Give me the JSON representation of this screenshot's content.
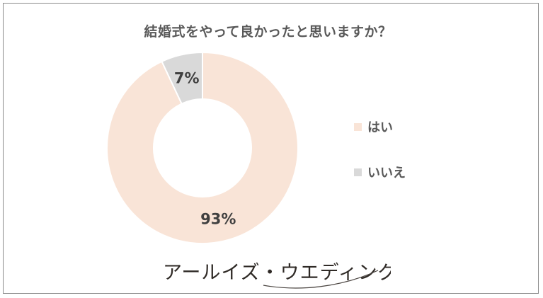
{
  "chart_data": {
    "type": "pie",
    "title": "結婚式をやって良かったと思いますか？",
    "categories": [
      "はい",
      "いいえ"
    ],
    "values": [
      93,
      7
    ],
    "data_labels": [
      "93%",
      "7%"
    ],
    "colors": [
      "#f9e4d7",
      "#d9d9d9"
    ],
    "legend_position": "right"
  },
  "brand": {
    "name": "アールイズ・ウエディング"
  }
}
